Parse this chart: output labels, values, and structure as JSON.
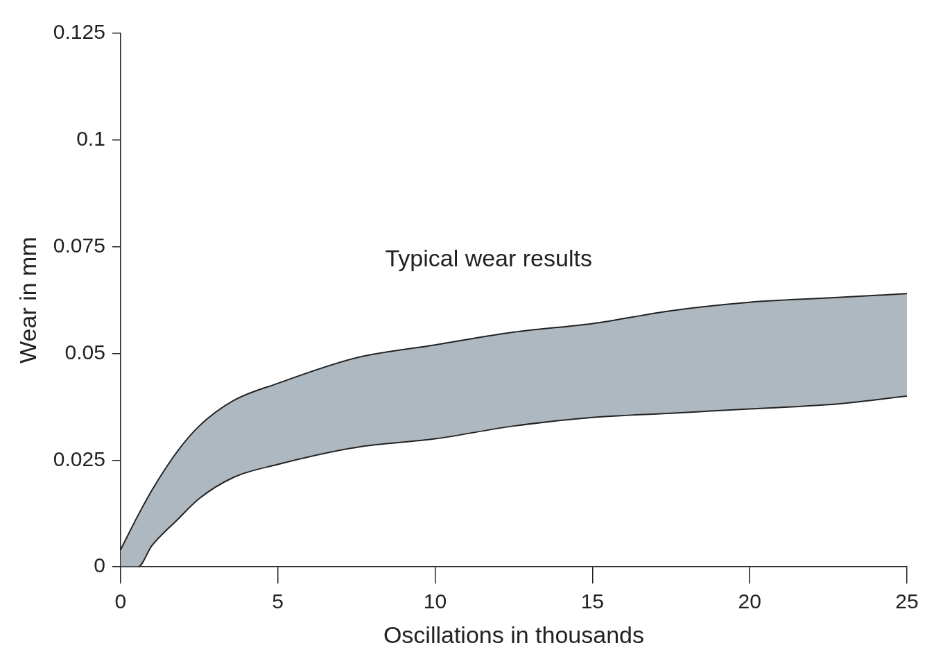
{
  "chart_data": {
    "type": "area",
    "xlabel": "Oscillations in thousands",
    "ylabel": "Wear in mm",
    "annotations": [
      "Typical wear results"
    ],
    "x": [
      0,
      0.55,
      1,
      1.8,
      2.5,
      3.6,
      5,
      7.5,
      10,
      12.5,
      15,
      17.5,
      20,
      22.5,
      25
    ],
    "series": [
      {
        "type": "line",
        "color": "#222222",
        "x": [
          0,
          0.55,
          1,
          1.8,
          2.5,
          3.6,
          5,
          7.5,
          10,
          12.5,
          15,
          17.5,
          20,
          22.5,
          25
        ],
        "values": [
          0,
          0,
          0.005,
          0.011,
          0.016,
          0.021,
          0.024,
          0.028,
          0.03,
          0.033,
          0.035,
          0.036,
          0.037,
          0.038,
          0.04
        ]
      },
      {
        "color": "#aeb8c0",
        "values": [
          0.004,
          0.012,
          0.018,
          0.027,
          0.033,
          0.039,
          0.043,
          0.049,
          0.052,
          0.055,
          0.057,
          0.06,
          0.062,
          0.063,
          0.064
        ]
      }
    ],
    "xlim": [
      0,
      25
    ],
    "xticks": [
      0,
      5,
      10,
      15,
      20,
      25
    ],
    "ylim": [
      0,
      0.125
    ],
    "yticks": [
      0,
      0.025,
      0.05,
      0.075,
      0.1,
      0.125
    ],
    "grid": false,
    "legend": false,
    "marker": "none",
    "line_style": "solid"
  }
}
